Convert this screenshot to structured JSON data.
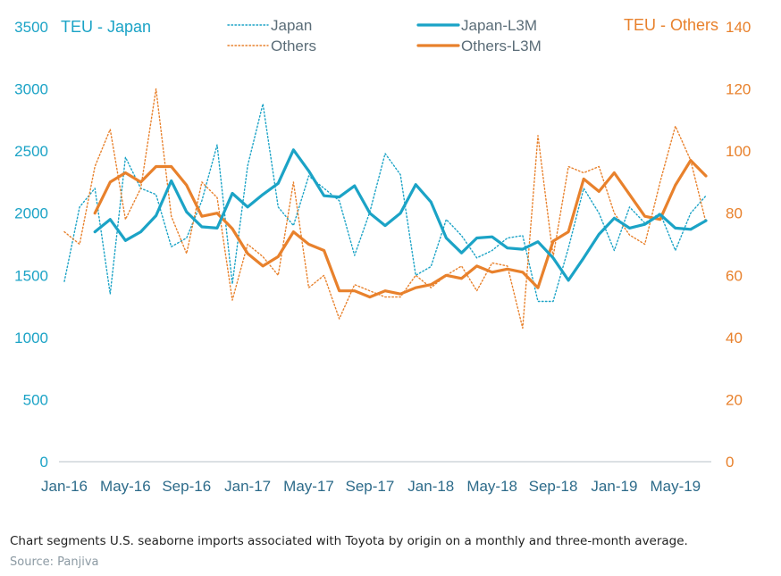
{
  "caption": "Chart segments U.S. seaborne imports associated with Toyota by origin on a monthly and three-month average.",
  "source": "Source: Panjiva",
  "colors": {
    "japan": "#1ba3c6",
    "others": "#e8812c",
    "axis": "#b8c2c8"
  },
  "chart_data": {
    "type": "line",
    "left_axis_title": "TEU - Japan",
    "right_axis_title": "TEU - Others",
    "ylim_left": [
      0,
      3500
    ],
    "ylim_right": [
      0,
      140
    ],
    "yticks_left": [
      "0",
      "500",
      "1000",
      "1500",
      "2000",
      "2500",
      "3000",
      "3500"
    ],
    "yticks_right": [
      "0",
      "20",
      "40",
      "60",
      "80",
      "100",
      "120",
      "140"
    ],
    "x_tick_labels": [
      "Jan-16",
      "May-16",
      "Sep-16",
      "Jan-17",
      "May-17",
      "Sep-17",
      "Jan-18",
      "May-18",
      "Sep-18",
      "Jan-19",
      "May-19"
    ],
    "x_months": [
      "Jan-16",
      "Feb-16",
      "Mar-16",
      "Apr-16",
      "May-16",
      "Jun-16",
      "Jul-16",
      "Aug-16",
      "Sep-16",
      "Oct-16",
      "Nov-16",
      "Dec-16",
      "Jan-17",
      "Feb-17",
      "Mar-17",
      "Apr-17",
      "May-17",
      "Jun-17",
      "Jul-17",
      "Aug-17",
      "Sep-17",
      "Oct-17",
      "Nov-17",
      "Dec-17",
      "Jan-18",
      "Feb-18",
      "Mar-18",
      "Apr-18",
      "May-18",
      "Jun-18",
      "Jul-18",
      "Aug-18",
      "Sep-18",
      "Oct-18",
      "Nov-18",
      "Dec-18",
      "Jan-19",
      "Feb-19",
      "Mar-19",
      "Apr-19",
      "May-19",
      "Jun-19",
      "Jul-19"
    ],
    "legend": [
      "Japan",
      "Others",
      "Japan-L3M",
      "Others-L3M"
    ],
    "series": [
      {
        "name": "Japan",
        "axis": "left",
        "style": "dotted",
        "values": [
          1450,
          2050,
          2200,
          1350,
          2450,
          2200,
          2150,
          1730,
          1800,
          2100,
          2550,
          1430,
          2380,
          2880,
          2050,
          1900,
          2300,
          2200,
          2100,
          1660,
          2010,
          2480,
          2310,
          1500,
          1570,
          1950,
          1820,
          1640,
          1700,
          1800,
          1820,
          1290,
          1290,
          1720,
          2200,
          2000,
          1700,
          2050,
          1920,
          2000,
          1700,
          2000,
          2140
        ]
      },
      {
        "name": "Others",
        "axis": "right",
        "style": "dotted",
        "values": [
          74,
          70,
          95,
          107,
          78,
          88,
          120,
          79,
          67,
          90,
          85,
          52,
          70,
          66,
          60,
          90,
          56,
          60,
          46,
          57,
          55,
          53,
          53,
          60,
          56,
          60,
          63,
          55,
          64,
          63,
          43,
          105,
          66,
          95,
          93,
          95,
          80,
          73,
          70,
          90,
          108,
          97,
          77
        ]
      },
      {
        "name": "Japan-L3M",
        "axis": "left",
        "style": "solid",
        "values": [
          null,
          null,
          1850,
          1950,
          1780,
          1850,
          1980,
          2260,
          2010,
          1890,
          1880,
          2160,
          2050,
          2150,
          2240,
          2510,
          2340,
          2140,
          2130,
          2220,
          2000,
          1900,
          2000,
          2230,
          2090,
          1800,
          1680,
          1800,
          1810,
          1720,
          1710,
          1770,
          1640,
          1460,
          1640,
          1830,
          1960,
          1880,
          1910,
          1990,
          1880,
          1870,
          1940
        ]
      },
      {
        "name": "Others-L3M",
        "axis": "right",
        "style": "solid",
        "values": [
          null,
          null,
          80,
          90,
          93,
          90,
          95,
          95,
          89,
          79,
          80,
          75,
          67,
          63,
          66,
          74,
          70,
          68,
          55,
          55,
          53,
          55,
          54,
          56,
          57,
          60,
          59,
          63,
          61,
          62,
          61,
          56,
          71,
          74,
          91,
          87,
          93,
          86,
          79,
          78,
          89,
          97,
          92
        ]
      }
    ]
  }
}
